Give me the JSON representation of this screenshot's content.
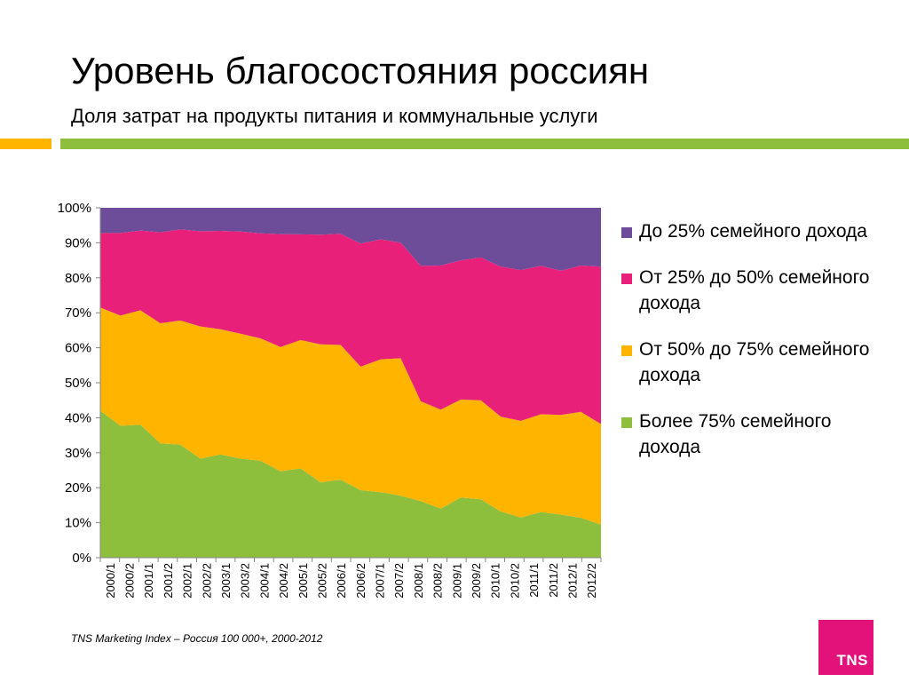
{
  "title": "Уровень благосостояния россиян",
  "subtitle": "Доля затрат на продукты питания и коммунальные услуги",
  "source": "TNS Marketing Index – Россия 100 000+, 2000-2012",
  "logo_text": "TNS",
  "chart_data": {
    "type": "area",
    "stacked": true,
    "x": [
      "2000/1",
      "2000/2",
      "2001/1",
      "2001/2",
      "2002/1",
      "2002/2",
      "2003/1",
      "2003/2",
      "2004/1",
      "2004/2",
      "2005/1",
      "2005/2",
      "2006/1",
      "2006/2",
      "2007/1",
      "2007/2",
      "2008/1",
      "2008/2",
      "2009/1",
      "2009/2",
      "2010/1",
      "2010/2",
      "2011/1",
      "2011/2",
      "2012/1",
      "2012/2"
    ],
    "ylim": [
      0,
      100
    ],
    "yticks": [
      "0%",
      "10%",
      "20%",
      "30%",
      "40%",
      "50%",
      "60%",
      "70%",
      "80%",
      "90%",
      "100%"
    ],
    "legend_position": "right",
    "series": [
      {
        "name": "Более 75% семейного дохода",
        "color": "#8dbe3c",
        "values": [
          42,
          37.7,
          38,
          32.7,
          32.3,
          28.3,
          29.5,
          28.3,
          27.7,
          24.7,
          25.5,
          21.5,
          22.3,
          19.3,
          18.7,
          17.7,
          16.2,
          14,
          17.2,
          16.7,
          13.2,
          11.5,
          13,
          12.3,
          11.4,
          9.5
        ]
      },
      {
        "name": "От 50% до 75% семейного дохода",
        "color": "#ffb400",
        "values": [
          29.5,
          31.5,
          32.7,
          34.3,
          35.5,
          37.8,
          35.8,
          35.7,
          35,
          35.5,
          36.7,
          39.5,
          38.5,
          35.3,
          38,
          39.3,
          28.5,
          28.3,
          28,
          28.3,
          27.1,
          27.6,
          28,
          28.5,
          30.3,
          28.7
        ]
      },
      {
        "name": "От 25% до 50% семейного дохода",
        "color": "#e8207a",
        "values": [
          21.3,
          23.6,
          22.8,
          26,
          26,
          27.2,
          28.1,
          29.2,
          30,
          32.3,
          30.2,
          31.3,
          31.8,
          35.2,
          34.3,
          33,
          38.7,
          41.2,
          39.8,
          40.8,
          42.9,
          43.1,
          42.4,
          41.2,
          41.8,
          45
        ]
      },
      {
        "name": "До 25% семейного дохода",
        "color": "#6d4c9a",
        "values": [
          7.2,
          7.2,
          6.5,
          7,
          6.2,
          6.7,
          6.6,
          6.8,
          7.3,
          7.5,
          7.6,
          7.7,
          7.4,
          10.2,
          9,
          10,
          16.6,
          16.5,
          15,
          14.2,
          16.8,
          17.8,
          16.6,
          18,
          16.5,
          16.8
        ]
      }
    ],
    "legend_order": [
      3,
      2,
      1,
      0
    ]
  }
}
